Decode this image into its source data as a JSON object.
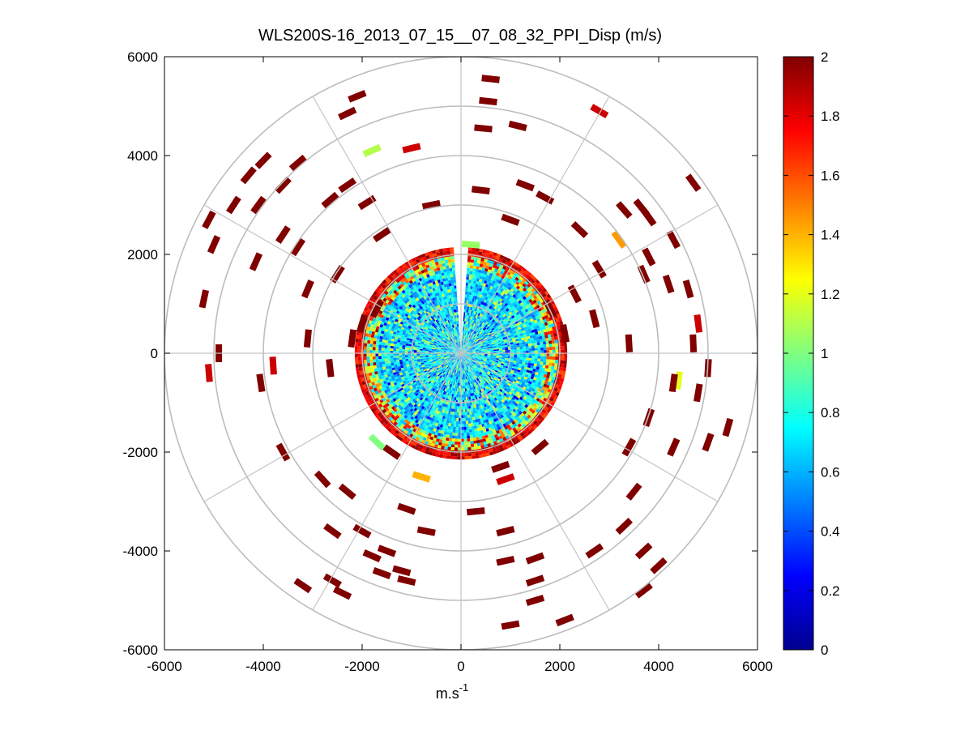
{
  "chart_data": {
    "type": "heatmap",
    "subtype": "polar-ppi",
    "title": "WLS200S-16_2013_07_15__07_08_32_PPI_Disp (m/s)",
    "xlabel_base": "m.s",
    "xlabel_exp": "-1",
    "ylabel": "",
    "xlim": [
      -6000,
      6000
    ],
    "ylim": [
      -6000,
      6000
    ],
    "x_ticks": [
      "-6000",
      "-4000",
      "-2000",
      "0",
      "2000",
      "4000",
      "6000"
    ],
    "y_ticks": [
      "6000",
      "4000",
      "2000",
      "0",
      "-2000",
      "-4000",
      "-6000"
    ],
    "x_tick_values": [
      -6000,
      -4000,
      -2000,
      0,
      2000,
      4000,
      6000
    ],
    "y_tick_values": [
      6000,
      4000,
      2000,
      0,
      -2000,
      -4000,
      -6000
    ],
    "range_rings_m": [
      1000,
      2000,
      3000,
      4000,
      5000,
      6000
    ],
    "radial_spokes_deg": [
      0,
      30,
      60,
      90,
      120,
      150,
      180,
      210,
      240,
      270,
      300,
      330
    ],
    "colorbar": {
      "min": 0,
      "max": 2,
      "ticks": [
        "2",
        "1.8",
        "1.6",
        "1.4",
        "1.2",
        "1",
        "0.8",
        "0.6",
        "0.4",
        "0.2",
        "0"
      ],
      "tick_values": [
        2,
        1.8,
        1.6,
        1.4,
        1.2,
        1,
        0.8,
        0.6,
        0.4,
        0.2,
        0
      ],
      "colormap": "jet"
    },
    "dense_core": {
      "radius_m": 2150,
      "typical_value": 0.65,
      "edge_value": 2.0,
      "missing_sector_deg": [
        -4,
        4
      ]
    },
    "scatter_gates": [
      {
        "x": -2000,
        "y": 600,
        "value": 2.0
      },
      {
        "x": -1700,
        "y": 900,
        "value": 2.0
      },
      {
        "x": -2200,
        "y": 300,
        "value": 2.0
      },
      {
        "x": 1800,
        "y": 900,
        "value": 2.0
      },
      {
        "x": 2100,
        "y": 400,
        "value": 2.0
      },
      {
        "x": -1400,
        "y": -2000,
        "value": 2.0
      },
      {
        "x": 800,
        "y": -2300,
        "value": 2.0
      },
      {
        "x": 1600,
        "y": -1900,
        "value": 2.0
      },
      {
        "x": -1800,
        "y": 4100,
        "value": 1.1
      },
      {
        "x": -1000,
        "y": 4150,
        "value": 1.85
      },
      {
        "x": 2800,
        "y": 4900,
        "value": 1.85
      },
      {
        "x": 3200,
        "y": 2300,
        "value": 1.45
      },
      {
        "x": 4800,
        "y": 600,
        "value": 1.85
      },
      {
        "x": -5100,
        "y": -400,
        "value": 1.85
      },
      {
        "x": -3800,
        "y": -250,
        "value": 1.85
      },
      {
        "x": 4400,
        "y": -550,
        "value": 1.2
      },
      {
        "x": -1700,
        "y": -1800,
        "value": 1.0
      },
      {
        "x": -800,
        "y": -2500,
        "value": 1.4
      },
      {
        "x": 900,
        "y": -2550,
        "value": 1.85
      },
      {
        "x": 200,
        "y": 2200,
        "value": 1.05
      },
      {
        "x": -2300,
        "y": 4850,
        "value": 2.0
      },
      {
        "x": -2100,
        "y": 5200,
        "value": 2.0
      },
      {
        "x": 600,
        "y": 5550,
        "value": 2.0
      },
      {
        "x": 550,
        "y": 5100,
        "value": 2.0
      },
      {
        "x": 1150,
        "y": 4600,
        "value": 2.0
      },
      {
        "x": 450,
        "y": 4550,
        "value": 2.0
      },
      {
        "x": -4300,
        "y": 3600,
        "value": 2.0
      },
      {
        "x": -4000,
        "y": 3900,
        "value": 2.0
      },
      {
        "x": -3300,
        "y": 3850,
        "value": 2.0
      },
      {
        "x": -3600,
        "y": 3400,
        "value": 2.0
      },
      {
        "x": -4100,
        "y": 3000,
        "value": 2.0
      },
      {
        "x": -5100,
        "y": 2700,
        "value": 2.0
      },
      {
        "x": -5000,
        "y": 2200,
        "value": 2.0
      },
      {
        "x": -4600,
        "y": 3000,
        "value": 2.0
      },
      {
        "x": -3600,
        "y": 2400,
        "value": 2.0
      },
      {
        "x": -2300,
        "y": 3400,
        "value": 2.0
      },
      {
        "x": -1900,
        "y": 3050,
        "value": 2.0
      },
      {
        "x": -2650,
        "y": 3100,
        "value": 2.0
      },
      {
        "x": -3100,
        "y": 1300,
        "value": 2.0
      },
      {
        "x": -4150,
        "y": 1850,
        "value": 2.0
      },
      {
        "x": -3300,
        "y": 2150,
        "value": 2.0
      },
      {
        "x": -5200,
        "y": 1100,
        "value": 2.0
      },
      {
        "x": -2500,
        "y": 1600,
        "value": 2.0
      },
      {
        "x": -4900,
        "y": 0,
        "value": 2.0
      },
      {
        "x": -4050,
        "y": -600,
        "value": 2.0
      },
      {
        "x": -2650,
        "y": -300,
        "value": 2.0
      },
      {
        "x": -3100,
        "y": 300,
        "value": 2.0
      },
      {
        "x": -3600,
        "y": -2000,
        "value": 2.0
      },
      {
        "x": -2800,
        "y": -2550,
        "value": 2.0
      },
      {
        "x": -2300,
        "y": -2800,
        "value": 2.0
      },
      {
        "x": -2600,
        "y": -3600,
        "value": 2.0
      },
      {
        "x": -2000,
        "y": -3600,
        "value": 2.0
      },
      {
        "x": -1800,
        "y": -4100,
        "value": 2.0
      },
      {
        "x": -1500,
        "y": -4000,
        "value": 2.0
      },
      {
        "x": -3200,
        "y": -4700,
        "value": 2.0
      },
      {
        "x": -2600,
        "y": -4600,
        "value": 2.0
      },
      {
        "x": -2400,
        "y": -4850,
        "value": 2.0
      },
      {
        "x": -1100,
        "y": -3150,
        "value": 2.0
      },
      {
        "x": -700,
        "y": -3600,
        "value": 2.0
      },
      {
        "x": -1200,
        "y": -4400,
        "value": 2.0
      },
      {
        "x": -1100,
        "y": -4600,
        "value": 2.0
      },
      {
        "x": -1600,
        "y": -4450,
        "value": 2.0
      },
      {
        "x": 300,
        "y": -3200,
        "value": 2.0
      },
      {
        "x": 900,
        "y": -3600,
        "value": 2.0
      },
      {
        "x": 900,
        "y": -4200,
        "value": 2.0
      },
      {
        "x": 1500,
        "y": -4150,
        "value": 2.0
      },
      {
        "x": 1500,
        "y": -4600,
        "value": 2.0
      },
      {
        "x": 1500,
        "y": -5000,
        "value": 2.0
      },
      {
        "x": 1000,
        "y": -5500,
        "value": 2.0
      },
      {
        "x": 2100,
        "y": -5400,
        "value": 2.0
      },
      {
        "x": 2700,
        "y": -4000,
        "value": 2.0
      },
      {
        "x": 3300,
        "y": -3500,
        "value": 2.0
      },
      {
        "x": 3500,
        "y": -2800,
        "value": 2.0
      },
      {
        "x": 3700,
        "y": -4000,
        "value": 2.0
      },
      {
        "x": 3700,
        "y": -4800,
        "value": 2.0
      },
      {
        "x": 4000,
        "y": -4300,
        "value": 2.0
      },
      {
        "x": 3400,
        "y": -1900,
        "value": 2.0
      },
      {
        "x": 3800,
        "y": -1300,
        "value": 2.0
      },
      {
        "x": 4300,
        "y": -1900,
        "value": 2.0
      },
      {
        "x": 5000,
        "y": -1800,
        "value": 2.0
      },
      {
        "x": 5400,
        "y": -1500,
        "value": 2.0
      },
      {
        "x": 4300,
        "y": -600,
        "value": 2.0
      },
      {
        "x": 5000,
        "y": -300,
        "value": 2.0
      },
      {
        "x": 4800,
        "y": -800,
        "value": 2.0
      },
      {
        "x": 4700,
        "y": 200,
        "value": 2.0
      },
      {
        "x": 3400,
        "y": 200,
        "value": 2.0
      },
      {
        "x": 4200,
        "y": 1400,
        "value": 2.0
      },
      {
        "x": 4600,
        "y": 1300,
        "value": 2.0
      },
      {
        "x": 3700,
        "y": 1600,
        "value": 2.0
      },
      {
        "x": 4300,
        "y": 2300,
        "value": 2.0
      },
      {
        "x": 3800,
        "y": 1950,
        "value": 2.0
      },
      {
        "x": 3300,
        "y": 2900,
        "value": 2.0
      },
      {
        "x": 3650,
        "y": 2950,
        "value": 2.0
      },
      {
        "x": 3800,
        "y": 2750,
        "value": 2.0
      },
      {
        "x": 4700,
        "y": 3450,
        "value": 2.0
      },
      {
        "x": 2400,
        "y": 2500,
        "value": 2.0
      },
      {
        "x": 2800,
        "y": 1700,
        "value": 2.0
      },
      {
        "x": 2300,
        "y": 1200,
        "value": 2.0
      },
      {
        "x": 2700,
        "y": 700,
        "value": 2.0
      },
      {
        "x": 1700,
        "y": 3150,
        "value": 2.0
      },
      {
        "x": 1300,
        "y": 3400,
        "value": 2.0
      },
      {
        "x": 1000,
        "y": 2700,
        "value": 2.0
      },
      {
        "x": -600,
        "y": 3000,
        "value": 2.0
      },
      {
        "x": 400,
        "y": 3300,
        "value": 2.0
      },
      {
        "x": -1600,
        "y": 2400,
        "value": 2.0
      }
    ]
  }
}
